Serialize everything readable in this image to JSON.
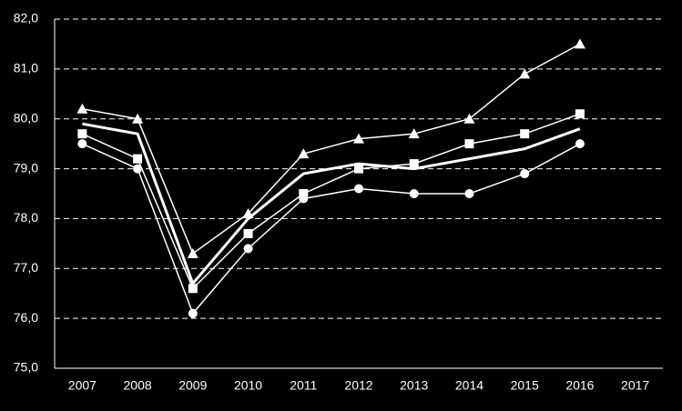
{
  "chart_data": {
    "type": "line",
    "categories": [
      "2007",
      "2008",
      "2009",
      "2010",
      "2011",
      "2012",
      "2013",
      "2014",
      "2015",
      "2016",
      "2017"
    ],
    "series": [
      {
        "marker": "triangle",
        "color": "#ffffff",
        "values": [
          80.2,
          80.0,
          77.3,
          78.1,
          79.3,
          79.6,
          79.7,
          80.0,
          80.9,
          81.5,
          null
        ]
      },
      {
        "marker": "square",
        "color": "#ffffff",
        "values": [
          79.7,
          79.2,
          76.6,
          77.7,
          78.5,
          79.0,
          79.1,
          79.5,
          79.7,
          80.1,
          null
        ]
      },
      {
        "marker": "none",
        "color": "#ffffff",
        "values": [
          79.9,
          79.7,
          76.7,
          78.0,
          78.9,
          79.1,
          79.0,
          79.2,
          79.4,
          79.8,
          null
        ]
      },
      {
        "marker": "circle",
        "color": "#ffffff",
        "values": [
          79.5,
          79.0,
          76.1,
          77.4,
          78.4,
          78.6,
          78.5,
          78.5,
          78.9,
          79.5,
          null
        ]
      }
    ],
    "ylim": [
      75,
      82
    ],
    "yticks": [
      {
        "value": 75,
        "label": "75,0"
      },
      {
        "value": 76,
        "label": "76,0"
      },
      {
        "value": 77,
        "label": "77,0"
      },
      {
        "value": 78,
        "label": "78,0"
      },
      {
        "value": 79,
        "label": "79,0"
      },
      {
        "value": 80,
        "label": "80,0"
      },
      {
        "value": 81,
        "label": "81,0"
      },
      {
        "value": 82,
        "label": "82,0"
      }
    ],
    "grid": true
  }
}
